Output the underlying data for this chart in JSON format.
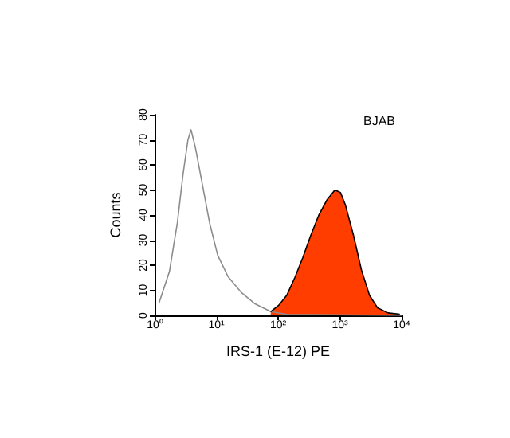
{
  "chart_data": {
    "type": "line",
    "xlabel": "IRS-1 (E-12) PE",
    "ylabel": "Counts",
    "log": "x",
    "marker": "none",
    "annotations": [
      "BJAB"
    ],
    "xlim": [
      1,
      10000
    ],
    "xticks": [
      {
        "value": 1,
        "label": "10⁰"
      },
      {
        "value": 10,
        "label": "10¹"
      },
      {
        "value": 100,
        "label": "10²"
      },
      {
        "value": 1000,
        "label": "10³"
      },
      {
        "value": 10000,
        "label": "10⁴"
      }
    ],
    "ylim": [
      0,
      80
    ],
    "yticks": [
      0,
      10,
      20,
      30,
      40,
      50,
      60,
      70,
      80
    ],
    "series": [
      {
        "type": "line",
        "color": "#8c8c8c",
        "x": [
          1.17,
          1.74,
          2.34,
          2.88,
          3.47,
          3.89,
          4.57,
          5.75,
          7.76,
          10.5,
          15.5,
          25.7,
          41.7,
          75.9,
          138,
          10000
        ],
        "values": [
          4.7,
          17.5,
          37,
          56,
          70,
          74,
          67,
          54,
          37,
          24,
          15.4,
          9,
          4.7,
          1.5,
          0.4,
          0
        ]
      },
      {
        "type": "area",
        "color": "#ff3d00",
        "x": [
          75.9,
          102,
          138,
          186,
          251,
          339,
          457,
          617,
          832,
          1023,
          1230,
          1660,
          2240,
          3020,
          4070,
          6030,
          9330
        ],
        "values": [
          1.5,
          4,
          8,
          15,
          23,
          32,
          40,
          46,
          50,
          49,
          44,
          32,
          18,
          8,
          3,
          1,
          0.5
        ]
      }
    ]
  }
}
